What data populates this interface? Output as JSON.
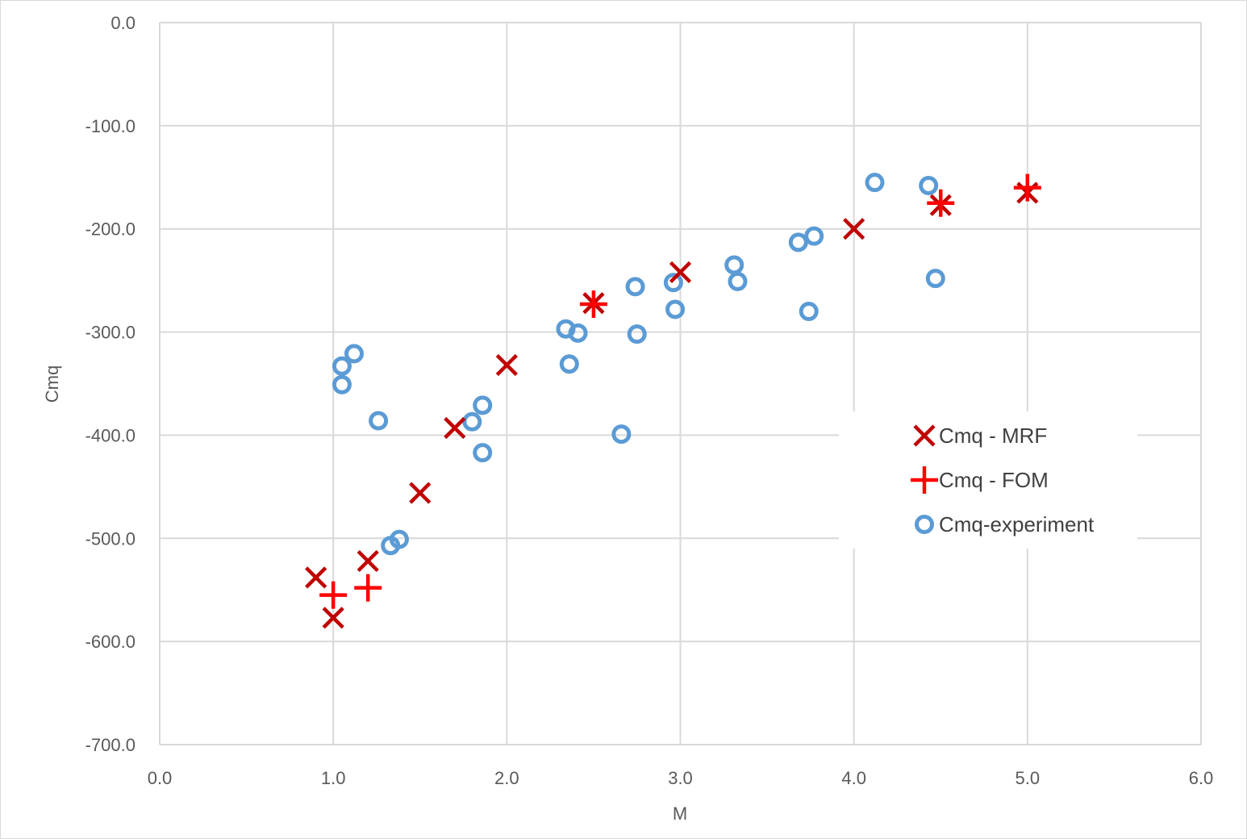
{
  "chart_data": {
    "type": "scatter",
    "title": "",
    "xlabel": "M",
    "ylabel": "Cmq",
    "xlim": [
      0,
      6
    ],
    "ylim": [
      -700,
      0
    ],
    "x_ticks": [
      "0.0",
      "1.0",
      "2.0",
      "3.0",
      "4.0",
      "5.0",
      "6.0"
    ],
    "y_ticks": [
      "0.0",
      "-100.0",
      "-200.0",
      "-300.0",
      "-400.0",
      "-500.0",
      "-600.0",
      "-700.0"
    ],
    "grid": true,
    "legend_position": "right",
    "series": [
      {
        "name": "Cmq - MRF",
        "marker": "x",
        "color": "#c00000",
        "points": [
          [
            0.9,
            -538
          ],
          [
            1.0,
            -577
          ],
          [
            1.2,
            -522
          ],
          [
            1.5,
            -456
          ],
          [
            1.7,
            -393
          ],
          [
            2.0,
            -332
          ],
          [
            2.5,
            -272
          ],
          [
            3.0,
            -242
          ],
          [
            4.0,
            -200
          ],
          [
            4.5,
            -177
          ],
          [
            5.0,
            -165
          ]
        ]
      },
      {
        "name": "Cmq - FOM",
        "marker": "plus",
        "color": "#ff0000",
        "points": [
          [
            1.0,
            -555
          ],
          [
            1.2,
            -548
          ],
          [
            2.5,
            -273
          ],
          [
            4.5,
            -175
          ],
          [
            5.0,
            -160
          ]
        ]
      },
      {
        "name": "Cmq-experiment",
        "marker": "circle",
        "color": "#5b9bd5",
        "points": [
          [
            1.05,
            -333
          ],
          [
            1.12,
            -321
          ],
          [
            1.05,
            -351
          ],
          [
            1.26,
            -386
          ],
          [
            1.33,
            -507
          ],
          [
            1.38,
            -501
          ],
          [
            1.8,
            -387
          ],
          [
            1.86,
            -371
          ],
          [
            1.86,
            -417
          ],
          [
            2.34,
            -297
          ],
          [
            2.41,
            -301
          ],
          [
            2.36,
            -331
          ],
          [
            2.66,
            -399
          ],
          [
            2.74,
            -256
          ],
          [
            2.75,
            -302
          ],
          [
            2.96,
            -252
          ],
          [
            2.97,
            -278
          ],
          [
            3.31,
            -235
          ],
          [
            3.33,
            -251
          ],
          [
            3.68,
            -213
          ],
          [
            3.77,
            -207
          ],
          [
            3.74,
            -280
          ],
          [
            4.12,
            -155
          ],
          [
            4.43,
            -158
          ],
          [
            4.47,
            -248
          ]
        ]
      }
    ]
  }
}
